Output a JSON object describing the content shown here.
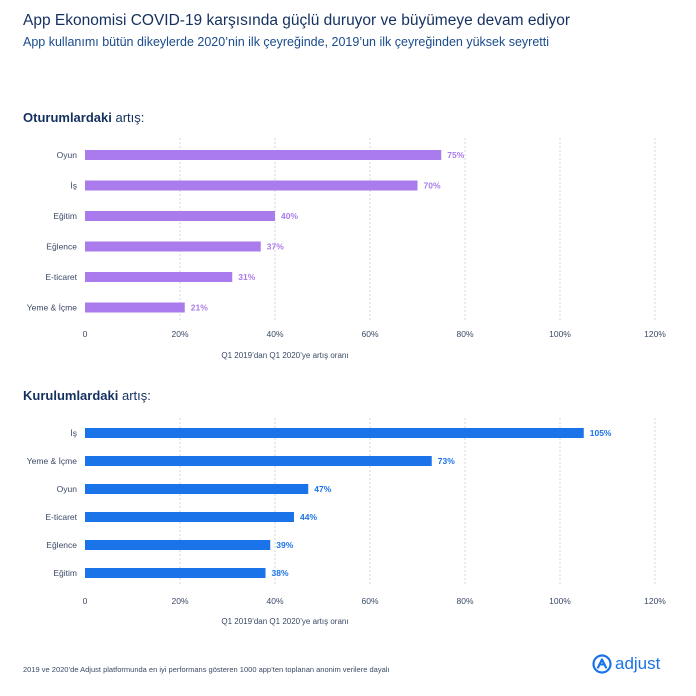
{
  "header": {
    "title": "App Ekonomisi COVID-19 karşısında güçlü duruyor ve büyümeye devam ediyor",
    "subtitle": "App kullanımı bütün dikeylerde 2020’nin ilk çeyreğinde, 2019’un ilk çeyreğinden yüksek seyretti"
  },
  "sessions": {
    "label_bold": "Oturumlardaki",
    "label_rest": " artış:"
  },
  "installs": {
    "label_bold": "Kurulumlardaki",
    "label_rest": " artış:"
  },
  "footer": {
    "note": "2019 ve 2020’de Adjust platformunda en iyi performans gösteren 1000 app’ten toplanan anonim verilere dayalı",
    "logo_text": "adjust",
    "logo_icon": "adjust-logo-icon"
  },
  "colors": {
    "sessions_bar": "#a97bec",
    "sessions_label": "#a97bec",
    "installs_bar": "#1a73e8",
    "installs_label": "#1a73e8",
    "grid": "#d0d4dc",
    "axis_text": "#3b4a66"
  },
  "chart_data": [
    {
      "type": "bar",
      "orientation": "horizontal",
      "title": "Oturumlardaki artış:",
      "categories": [
        "Oyun",
        "İş",
        "Eğitim",
        "Eğlence",
        "E-ticaret",
        "Yeme & İçme"
      ],
      "values": [
        75,
        70,
        40,
        37,
        31,
        21
      ],
      "value_labels": [
        "75%",
        "70%",
        "40%",
        "37%",
        "31%",
        "21%"
      ],
      "xlabel": "Q1 2019’dan Q1 2020’ye artış oranı",
      "xlim": [
        0,
        120
      ],
      "xticks": [
        0,
        20,
        40,
        60,
        80,
        100,
        120
      ],
      "xtick_labels": [
        "0",
        "20%",
        "40%",
        "60%",
        "80%",
        "100%",
        "120%"
      ],
      "grid": true
    },
    {
      "type": "bar",
      "orientation": "horizontal",
      "title": "Kurulumlardaki artış:",
      "categories": [
        "İş",
        "Yeme & İçme",
        "Oyun",
        "E-ticaret",
        "Eğlence",
        "Eğitim"
      ],
      "values": [
        105,
        73,
        47,
        44,
        39,
        38
      ],
      "value_labels": [
        "105%",
        "73%",
        "47%",
        "44%",
        "39%",
        "38%"
      ],
      "xlabel": "Q1 2019’dan Q1 2020’ye artış oranı",
      "xlim": [
        0,
        120
      ],
      "xticks": [
        0,
        20,
        40,
        60,
        80,
        100,
        120
      ],
      "xtick_labels": [
        "0",
        "20%",
        "40%",
        "60%",
        "80%",
        "100%",
        "120%"
      ],
      "grid": true
    }
  ]
}
